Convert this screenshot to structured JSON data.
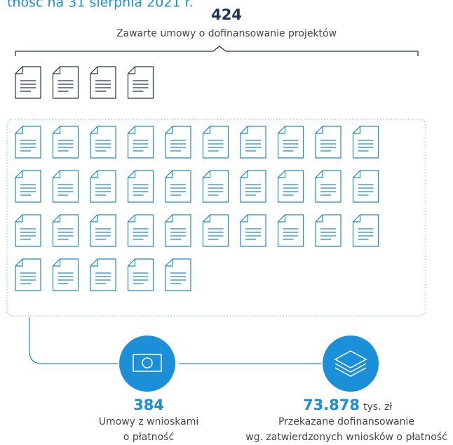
{
  "header": {
    "title": "tność na 31 sierpnia 2021 r."
  },
  "contracts": {
    "value": 424,
    "label": "Zawarte umowy o dofinansowanie projektów"
  },
  "payments": {
    "value": 384,
    "label_line1": "Umowy z wnioskami",
    "label_line2": "o płatność"
  },
  "funding": {
    "value": "73.878",
    "unit": "tys. zł",
    "label_line1": "Przekazane dofinansowanie",
    "label_line2": "wg. zatwierdzonych wniosków o płatność"
  }
}
